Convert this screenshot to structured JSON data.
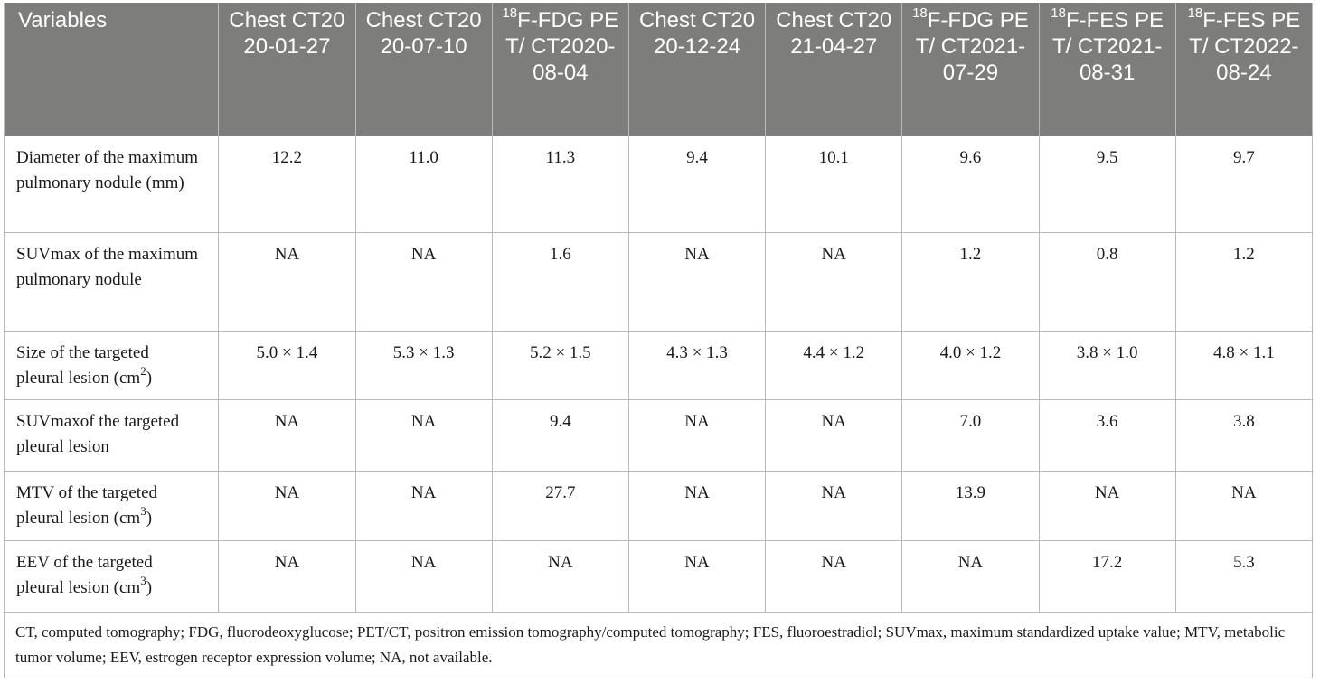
{
  "header": {
    "variables": "Variables",
    "cols": [
      {
        "pre": "",
        "sup": "",
        "text": "Chest CT2020-01-27"
      },
      {
        "pre": "",
        "sup": "",
        "text": "Chest CT2020-07-10"
      },
      {
        "pre": "",
        "sup": "18",
        "text": "F-FDG PET/ CT2020-08-04"
      },
      {
        "pre": "",
        "sup": "",
        "text": "Chest CT2020-12-24"
      },
      {
        "pre": "",
        "sup": "",
        "text": "Chest CT2021-04-27"
      },
      {
        "pre": "",
        "sup": "18",
        "text": "F-FDG PET/ CT2021-07-29"
      },
      {
        "pre": "",
        "sup": "18",
        "text": "F-FES PET/ CT2021-08-31"
      },
      {
        "pre": "",
        "sup": "18",
        "text": "F-FES PET/ CT2022-08-24"
      }
    ]
  },
  "rows": [
    {
      "label": "Diameter of the maximum pulmonary nodule (mm)",
      "label_sup": "",
      "label_suffix": "",
      "values": [
        "12.2",
        "11.0",
        "11.3",
        "9.4",
        "10.1",
        "9.6",
        "9.5",
        "9.7"
      ]
    },
    {
      "label": "SUVmax of the maximum pulmonary nodule",
      "label_sup": "",
      "label_suffix": "",
      "values": [
        "NA",
        "NA",
        "1.6",
        "NA",
        "NA",
        "1.2",
        "0.8",
        "1.2"
      ]
    },
    {
      "label": "Size of the targeted pleural lesion (cm",
      "label_sup": "2",
      "label_suffix": ")",
      "values": [
        "5.0 × 1.4",
        "5.3 × 1.3",
        "5.2 × 1.5",
        "4.3 × 1.3",
        "4.4 × 1.2",
        "4.0 × 1.2",
        "3.8 × 1.0",
        "4.8 × 1.1"
      ]
    },
    {
      "label": "SUVmaxof the targeted pleural lesion",
      "label_sup": "",
      "label_suffix": "",
      "values": [
        "NA",
        "NA",
        "9.4",
        "NA",
        "NA",
        "7.0",
        "3.6",
        "3.8"
      ]
    },
    {
      "label": "MTV of the targeted pleural lesion (cm",
      "label_sup": "3",
      "label_suffix": ")",
      "values": [
        "NA",
        "NA",
        "27.7",
        "NA",
        "NA",
        "13.9",
        "NA",
        "NA"
      ]
    },
    {
      "label": "EEV of the targeted pleural lesion (cm",
      "label_sup": "3",
      "label_suffix": ")",
      "values": [
        "NA",
        "NA",
        "NA",
        "NA",
        "NA",
        "NA",
        "17.2",
        "5.3"
      ]
    }
  ],
  "footnote": "CT, computed tomography; FDG, fluorodeoxyglucose; PET/CT, positron emission tomography/computed tomography; FES, fluoroestradiol; SUVmax, maximum standardized uptake value; MTV, metabolic tumor volume; EEV, estrogen receptor expression volume; NA, not available.",
  "colors": {
    "header_bg": "#7d7d7c",
    "header_text": "#ffffff",
    "border": "#b9b9b9",
    "text": "#1a1a1a"
  }
}
